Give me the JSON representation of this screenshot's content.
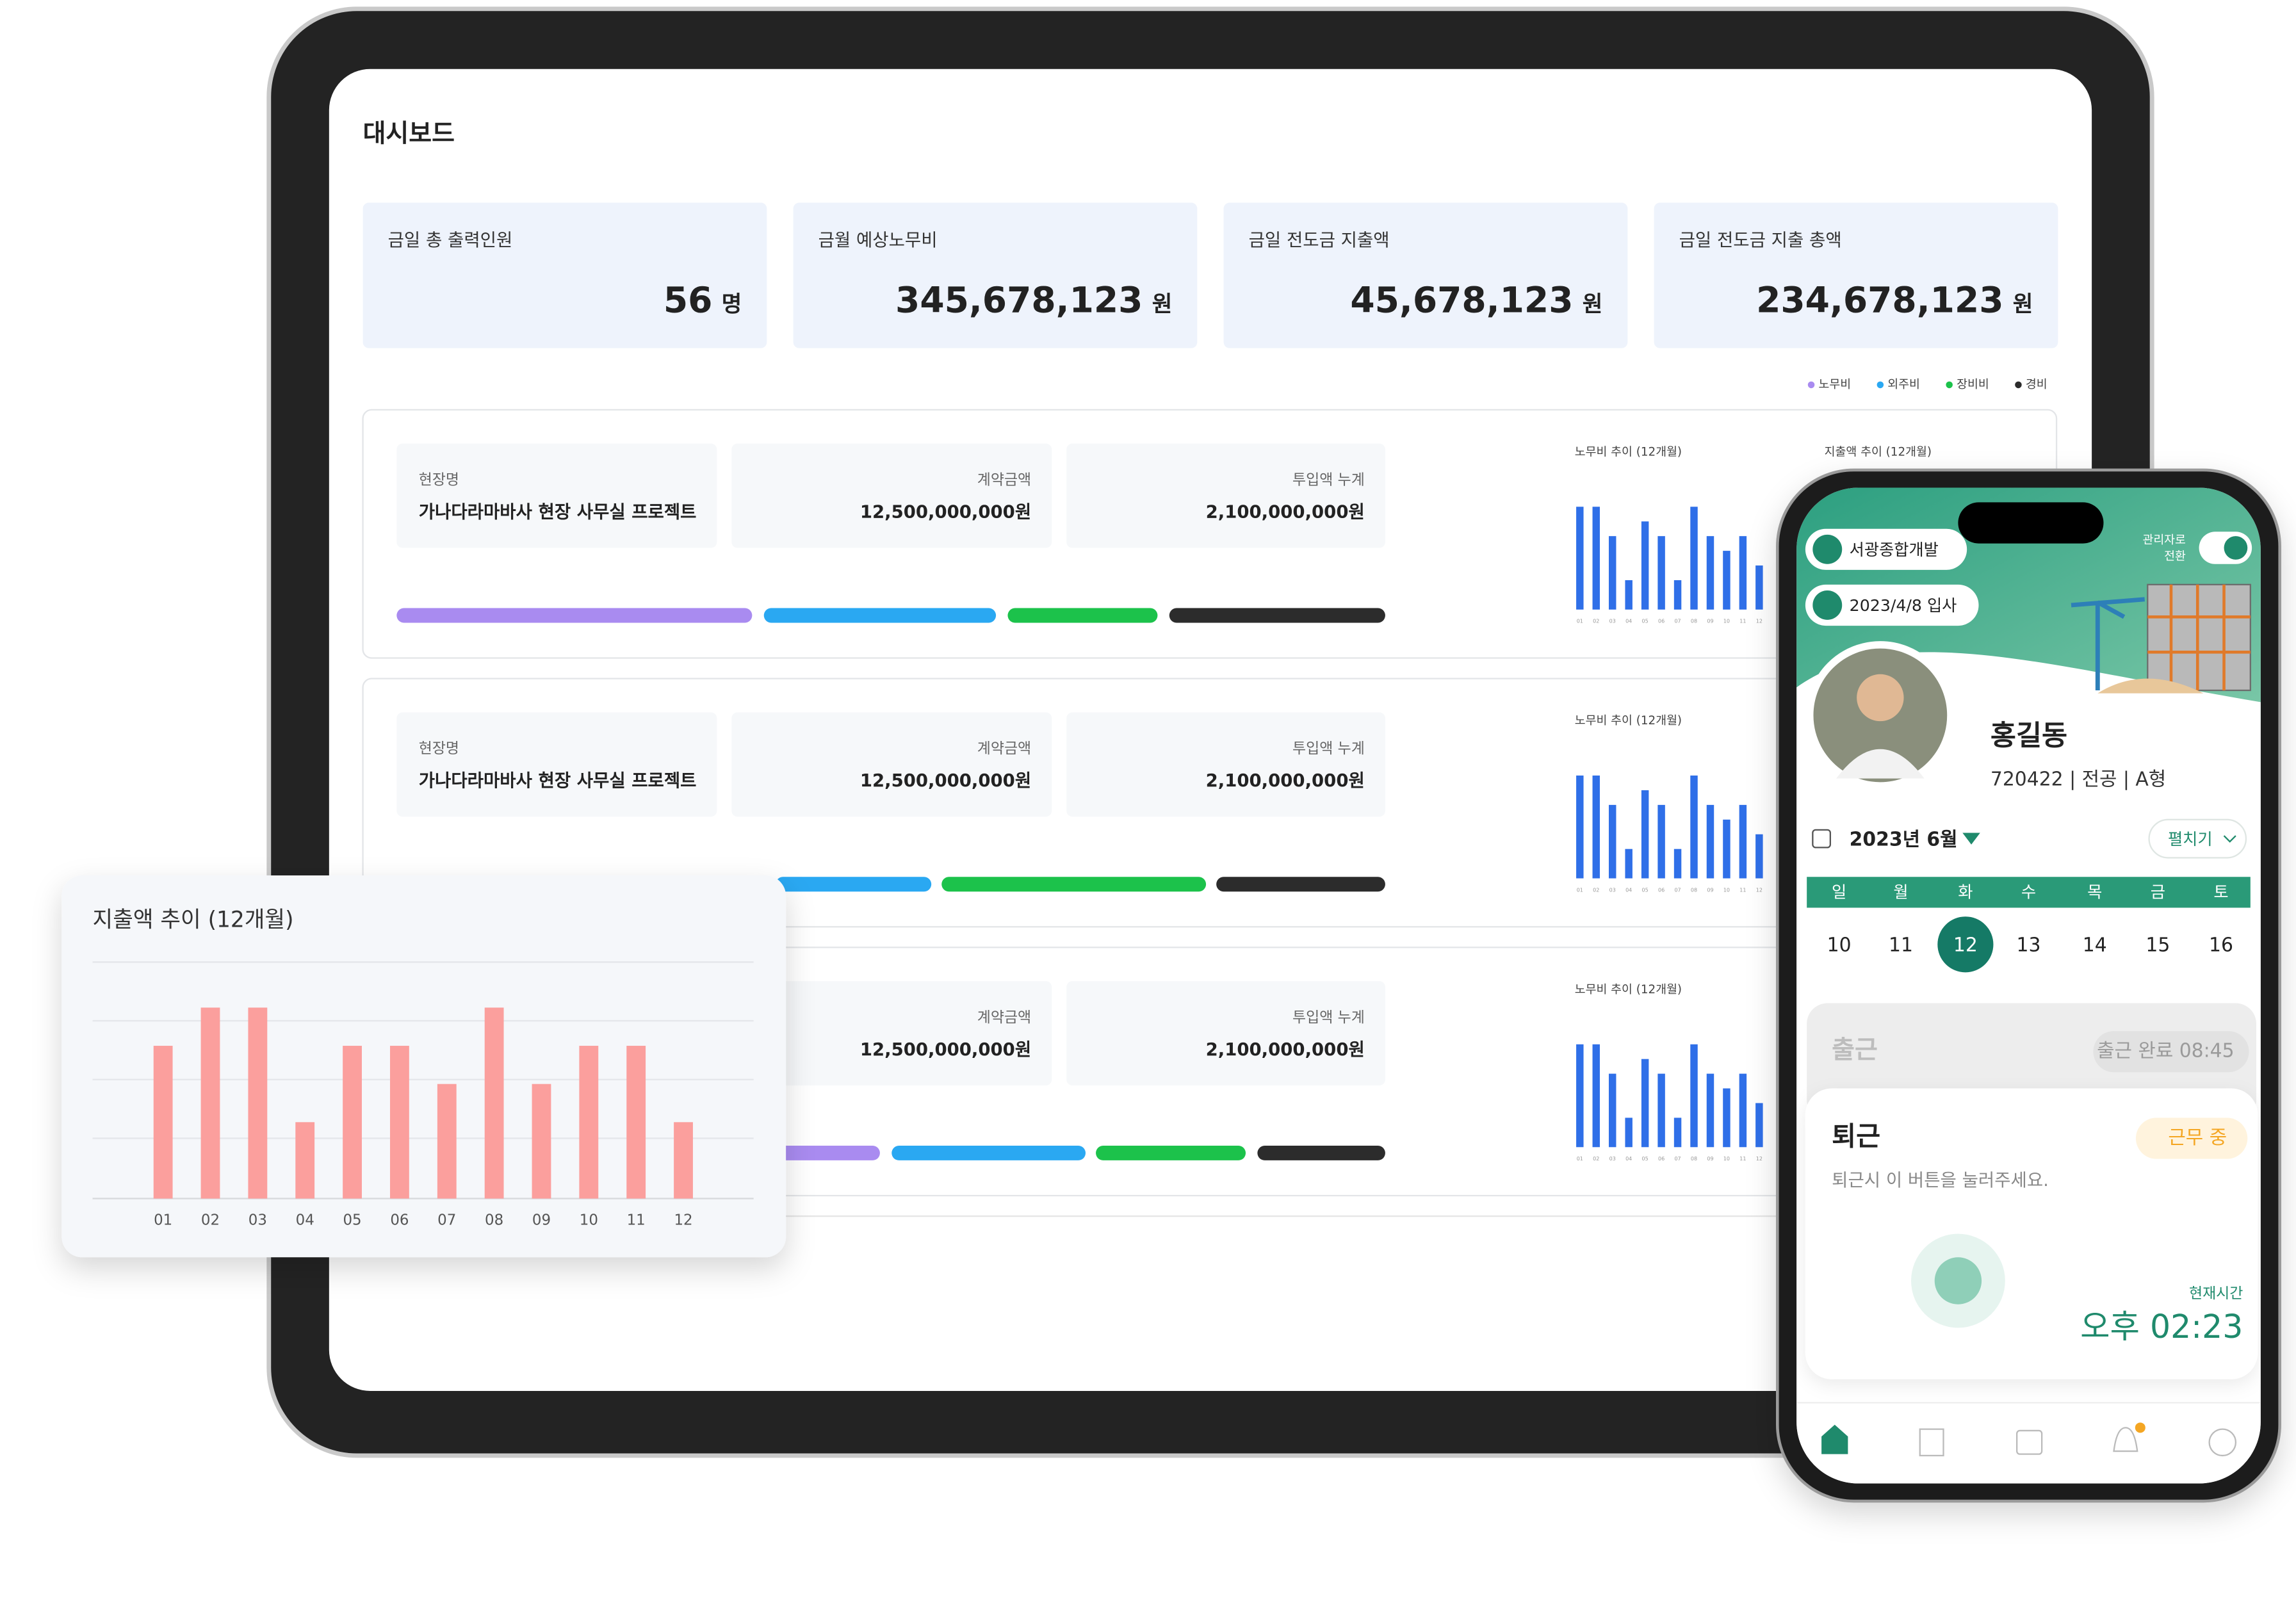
{
  "dashboard": {
    "title": "대시보드",
    "kpis": [
      {
        "label": "금일 총 출력인원",
        "value": "56",
        "unit": "명"
      },
      {
        "label": "금월 예상노무비",
        "value": "345,678,123",
        "unit": "원"
      },
      {
        "label": "금일 전도금 지출액",
        "value": "45,678,123",
        "unit": "원"
      },
      {
        "label": "금일 전도금 지출 총액",
        "value": "234,678,123",
        "unit": "원"
      }
    ],
    "legend": [
      {
        "name": "노무비",
        "color": "#a98bf0"
      },
      {
        "name": "외주비",
        "color": "#2aa8f2"
      },
      {
        "name": "장비비",
        "color": "#1cc24b"
      },
      {
        "name": "경비",
        "color": "#2c2c2c"
      }
    ],
    "projects": [
      {
        "site_label": "현장명",
        "site_name": "가나다라마바사 현장 사무실 프로젝트",
        "contract_label": "계약금액",
        "contract_amount": "12,500,000,000원",
        "invested_label": "투입액 누계",
        "invested_amount": "2,100,000,000원"
      },
      {
        "site_label": "현장명",
        "site_name": "가나다라마바사 현장 사무실 프로젝트",
        "contract_label": "계약금액",
        "contract_amount": "12,500,000,000원",
        "invested_label": "투입액 누계",
        "invested_amount": "2,100,000,000원"
      },
      {
        "contract_label": "계약금액",
        "contract_amount": "12,500,000,000원",
        "invested_label": "투입액 누계",
        "invested_amount": "2,100,000,000원"
      }
    ],
    "labor_chart_title": "노무비 추이 (12개월)",
    "expense_chart_title": "지출액 추이 (12개월)"
  },
  "labor_trend": {
    "values": [
      7,
      7,
      5,
      2,
      6,
      5,
      2,
      7,
      5,
      4,
      5,
      3
    ],
    "color": "#2f6fe8",
    "ylim": [
      0,
      8
    ]
  },
  "chart_data": {
    "type": "bar",
    "title": "지출액 추이 (12개월)",
    "categories": [
      "01",
      "02",
      "03",
      "04",
      "05",
      "06",
      "07",
      "08",
      "09",
      "10",
      "11",
      "12"
    ],
    "values": [
      4,
      5,
      5,
      2,
      4,
      4,
      3,
      5,
      3,
      4,
      4,
      2
    ],
    "color": "#fb9f9d",
    "ylim": [
      0,
      6
    ]
  },
  "mobile": {
    "company": "서광종합개발",
    "join_date": "2023/4/8 입사",
    "admin_switch": [
      "관리자로",
      "전환"
    ],
    "name": "홍길동",
    "profile": "720422 | 전공 | A형",
    "month": "2023년 6월",
    "expand": "펼치기",
    "weekdays": [
      "일",
      "월",
      "화",
      "수",
      "목",
      "금",
      "토"
    ],
    "dates": [
      "10",
      "11",
      "12",
      "13",
      "14",
      "15",
      "16"
    ],
    "selected_date_index": 2,
    "check_in": {
      "label": "출근",
      "status": "출근 완료 08:45"
    },
    "check_out": {
      "label": "퇴근",
      "status": "근무 중",
      "hint": "퇴근시 이 버튼을 눌러주세요."
    },
    "current_time_label": "현재시간",
    "current_time": "오후 02:23"
  }
}
